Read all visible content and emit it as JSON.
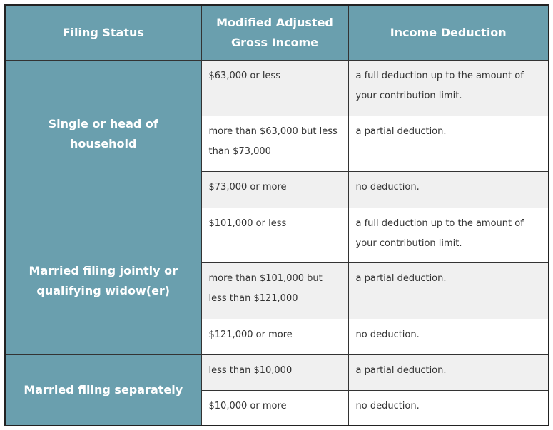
{
  "table": {
    "header": [
      "Filing Status",
      "Modified Adjusted Gross Income",
      "Income Deduction"
    ],
    "groups": [
      {
        "status": "Single or head of household",
        "rows": [
          [
            "$63,000 or less",
            "a full deduction up to the amount of your contribution limit."
          ],
          [
            "more than $63,000 but less than $73,000",
            "a partial deduction."
          ],
          [
            "$73,000 or more",
            "no deduction."
          ]
        ]
      },
      {
        "status": "Married filing jointly or qualifying widow(er)",
        "rows": [
          [
            "$101,000 or less",
            "a full deduction up to the amount of your contribution limit."
          ],
          [
            "more than $101,000 but less than $121,000",
            "a partial deduction."
          ],
          [
            "$121,000 or more",
            "no deduction."
          ]
        ]
      },
      {
        "status": "Married filing separately",
        "rows": [
          [
            "less than $10,000",
            "a partial deduction."
          ],
          [
            "$10,000 or more",
            "no deduction."
          ]
        ]
      }
    ]
  }
}
